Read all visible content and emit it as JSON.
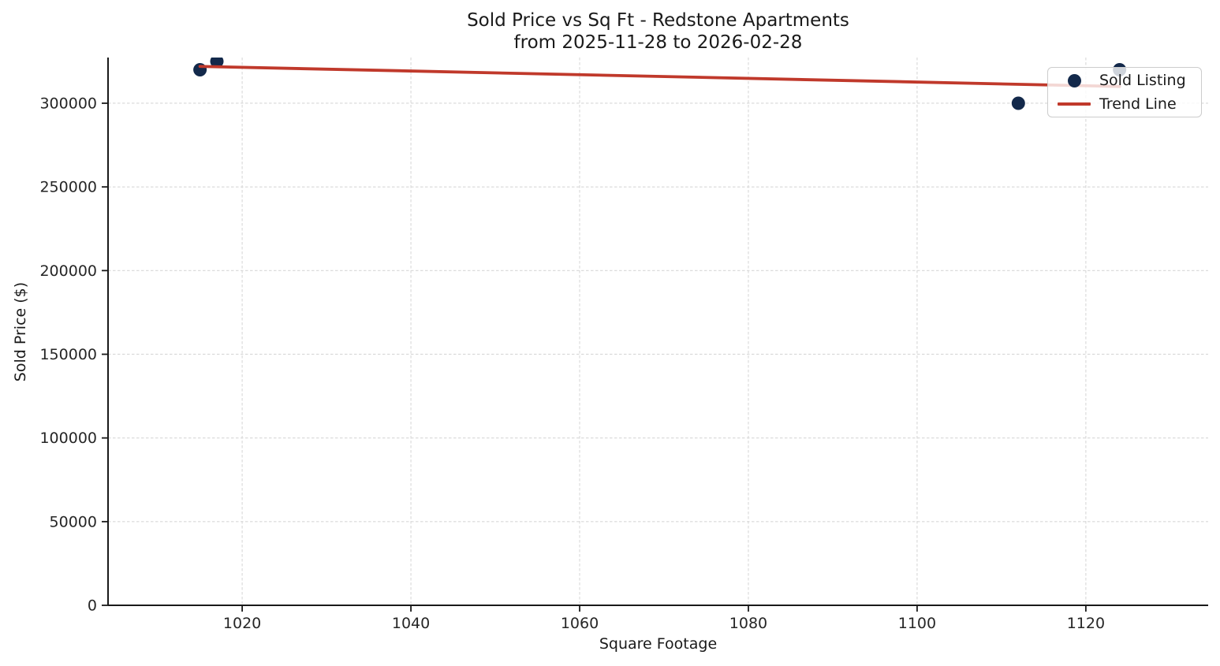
{
  "chart_data": {
    "type": "scatter",
    "title": "Sold Price vs Sq Ft - Redstone Apartments",
    "subtitle": "from 2025-11-28 to 2026-02-28",
    "xlabel": "Square Footage",
    "ylabel": "Sold Price ($)",
    "xlim": [
      1004.1,
      1134.5
    ],
    "ylim": [
      0,
      327300
    ],
    "x_ticks": [
      1020,
      1040,
      1060,
      1080,
      1100,
      1120
    ],
    "y_ticks": [
      0,
      50000,
      100000,
      150000,
      200000,
      250000,
      300000
    ],
    "grid": true,
    "grid_style": "dashed",
    "legend_position": "upper-right",
    "series": [
      {
        "name": "Sold Listing",
        "type": "scatter",
        "color": "#13294b",
        "marker": "circle",
        "marker_radius": 8.5,
        "points": [
          [
            1015,
            320000
          ],
          [
            1017,
            325000
          ],
          [
            1112,
            300000
          ],
          [
            1124,
            320000
          ]
        ]
      },
      {
        "name": "Trend Line",
        "type": "line",
        "color": "#c0392b",
        "line_width": 3.8,
        "points": [
          [
            1015,
            322000
          ],
          [
            1124,
            310000
          ]
        ]
      }
    ],
    "colors": {
      "spine": "#1a1a1a",
      "tick_label": "#262626",
      "gridline": "#d8d8d8",
      "background": "#ffffff"
    }
  },
  "legend": {
    "items": [
      {
        "label": "Sold Listing",
        "marker": "dot",
        "color": "#13294b"
      },
      {
        "label": "Trend Line",
        "marker": "line",
        "color": "#c0392b"
      }
    ]
  }
}
